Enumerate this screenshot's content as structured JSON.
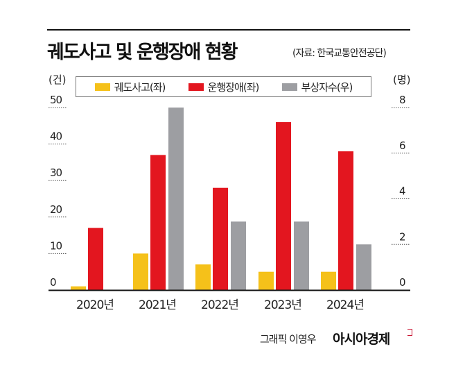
{
  "chart_data": {
    "type": "bar",
    "title": "궤도사고 및 운행장애 현황",
    "source": "(자료: 한국교통안전공단)",
    "categories": [
      "2020년",
      "2021년",
      "2022년",
      "2023년",
      "2024년"
    ],
    "left_axis": {
      "unit": "(건)",
      "ylim": [
        0,
        50
      ],
      "ticks": [
        "0",
        "10",
        "20",
        "30",
        "40",
        "50"
      ]
    },
    "right_axis": {
      "unit": "(명)",
      "ylim": [
        0,
        8
      ],
      "ticks": [
        "0",
        "2",
        "4",
        "6",
        "8"
      ]
    },
    "series": [
      {
        "name": "궤도사고(좌)",
        "axis": "left",
        "color": "#f5c11a",
        "values": [
          1,
          10,
          7,
          5,
          5
        ]
      },
      {
        "name": "운행장애(좌)",
        "axis": "left",
        "color": "#e3161f",
        "values": [
          17,
          37,
          28,
          46,
          38
        ]
      },
      {
        "name": "부상자수(우)",
        "axis": "right",
        "color": "#9d9ea2",
        "values": [
          0,
          8,
          3,
          3,
          2
        ]
      }
    ],
    "grid": false,
    "legend_position": "top"
  },
  "credit": {
    "text": "그래픽 이영우",
    "brand": "아시아경제"
  }
}
